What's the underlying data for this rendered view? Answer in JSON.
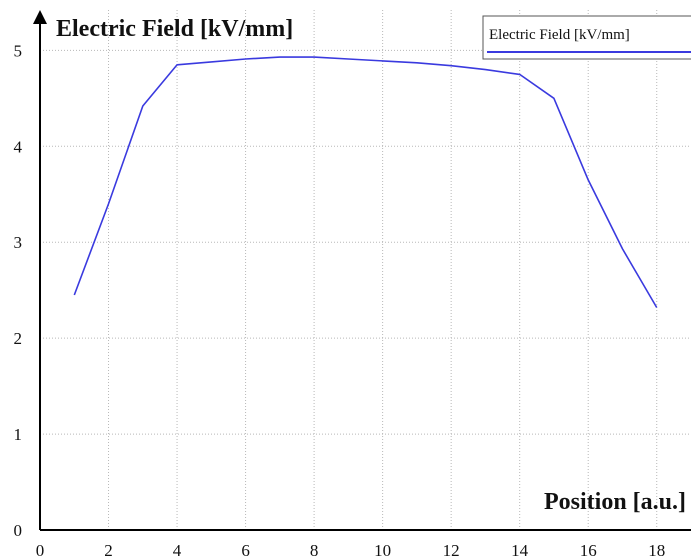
{
  "chart_data": {
    "type": "line",
    "title": "",
    "xlabel": "Position [a.u.]",
    "ylabel": "Electric Field [kV/mm]",
    "xlim": [
      0,
      19
    ],
    "ylim": [
      0,
      5.4
    ],
    "x_ticks": [
      0,
      2,
      4,
      6,
      8,
      10,
      12,
      14,
      16,
      18
    ],
    "y_ticks": [
      0,
      1,
      2,
      3,
      4,
      5
    ],
    "grid": true,
    "legend": {
      "position": "top-right",
      "entries": [
        "Electric Field [kV/mm]"
      ]
    },
    "series": [
      {
        "name": "Electric Field [kV/mm]",
        "color": "#3a3adf",
        "x": [
          1,
          2,
          3,
          4,
          5,
          6,
          7,
          8,
          9,
          10,
          11,
          12,
          13,
          14,
          15,
          16,
          17,
          18
        ],
        "y": [
          2.45,
          3.4,
          4.42,
          4.85,
          4.88,
          4.91,
          4.93,
          4.93,
          4.91,
          4.89,
          4.87,
          4.84,
          4.8,
          4.75,
          4.5,
          3.65,
          2.93,
          2.32
        ]
      }
    ]
  }
}
